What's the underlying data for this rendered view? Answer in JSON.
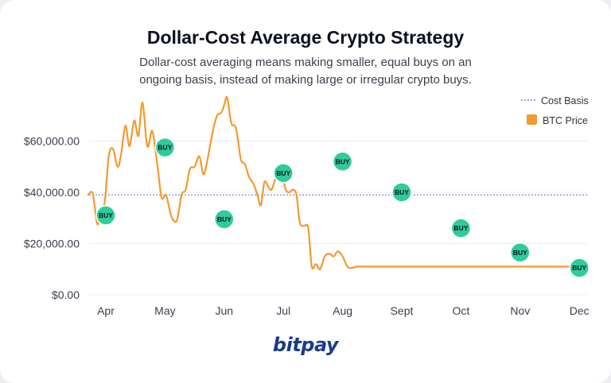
{
  "title": "Dollar-Cost Average Crypto Strategy",
  "subtitle": "Dollar-cost averaging means making smaller, equal buys on an ongoing basis, instead of making large or irregular crypto buys.",
  "logo_text": "bitpay",
  "colors": {
    "price_line": "#f29a2e",
    "cost_basis": "#5b6bd6",
    "buy_marker": "#2ecc9a",
    "grid": "#ececf2"
  },
  "chart_data": {
    "type": "line",
    "x_ticks": [
      "Apr",
      "May",
      "Jun",
      "Jul",
      "Aug",
      "Sept",
      "Oct",
      "Nov",
      "Dec"
    ],
    "y_ticks": [
      "$0.00",
      "$20,000.00",
      "$40,000.00",
      "$60,000.00"
    ],
    "ylim": [
      0,
      80000
    ],
    "grid": true,
    "legend_position": "top-right",
    "legend": [
      "Cost Basis",
      "BTC Price"
    ],
    "series": [
      {
        "name": "BTC Price",
        "type": "line",
        "x": [
          -0.3,
          -0.22,
          -0.15,
          -0.1,
          -0.02,
          0.05,
          0.12,
          0.2,
          0.26,
          0.33,
          0.4,
          0.48,
          0.55,
          0.62,
          0.7,
          0.78,
          0.84,
          0.9,
          0.94,
          0.98,
          1.02,
          1.07,
          1.12,
          1.2,
          1.28,
          1.35,
          1.42,
          1.5,
          1.58,
          1.65,
          1.72,
          1.8,
          1.88,
          1.95,
          2.0,
          2.05,
          2.12,
          2.2,
          2.28,
          2.35,
          2.42,
          2.5,
          2.56,
          2.62,
          2.68,
          2.75,
          2.8,
          2.86,
          2.92,
          2.98,
          3.04,
          3.1,
          3.16,
          3.22,
          3.28,
          3.36,
          3.42,
          3.48,
          3.55,
          3.62,
          3.7,
          3.78,
          3.85,
          3.92,
          4.0,
          4.08,
          4.16,
          4.24,
          4.32,
          4.4,
          4.48,
          4.55,
          4.62,
          4.7,
          4.78,
          4.86,
          4.94,
          5.0,
          5.06,
          5.12,
          5.18,
          5.25,
          5.32,
          5.38,
          5.45,
          5.52,
          5.58,
          5.65,
          5.72,
          5.78,
          5.85,
          5.92,
          6.0,
          6.08,
          6.14,
          6.2,
          6.28,
          6.35,
          6.42,
          6.5,
          6.58,
          6.66,
          6.74,
          6.82,
          6.9,
          6.98,
          7.06,
          7.14,
          7.22,
          7.3,
          7.38,
          7.46,
          7.54,
          7.62,
          7.7,
          7.78,
          7.86,
          7.94,
          8.0,
          8.06
        ],
        "values": [
          39000,
          39500,
          28000,
          30000,
          36000,
          54000,
          57000,
          50000,
          55000,
          66000,
          58000,
          68000,
          62000,
          75000,
          58000,
          64000,
          56000,
          45000,
          38000,
          38000,
          39000,
          34000,
          30000,
          29000,
          39000,
          41000,
          49000,
          50000,
          54000,
          47000,
          53000,
          63000,
          70000,
          71000,
          74000,
          77000,
          67000,
          65000,
          53000,
          51000,
          46000,
          43000,
          39000,
          35000,
          44000,
          42000,
          41000,
          45000,
          49000,
          47000,
          41000,
          40000,
          41000,
          39000,
          28000,
          27000,
          26000,
          11000,
          12000,
          10000,
          15000,
          16000,
          15000,
          17000,
          15000,
          11000,
          10500,
          11000,
          11000,
          11000,
          11000,
          11000,
          11000,
          11000,
          11000,
          11000,
          11000,
          11000,
          11000,
          11000,
          11000,
          11000,
          11000,
          11000,
          11000,
          11000,
          11000,
          11000,
          11000,
          11000,
          11000,
          11000,
          11000,
          11000,
          11000,
          11000,
          11000,
          11000,
          11000,
          11000,
          11000,
          11000,
          11000,
          11000,
          11000,
          11000,
          11000,
          11000,
          11000,
          11000,
          11000,
          11000,
          11000,
          11000,
          11000,
          11000,
          11000,
          11000,
          11000,
          11000
        ]
      },
      {
        "name": "Cost Basis",
        "type": "line",
        "value": 39000
      }
    ],
    "buys": [
      {
        "x": 0,
        "value": 31000,
        "label": "BUY"
      },
      {
        "x": 1,
        "value": 57500,
        "label": "BUY"
      },
      {
        "x": 2,
        "value": 29500,
        "label": "BUY"
      },
      {
        "x": 3,
        "value": 47500,
        "label": "BUY"
      },
      {
        "x": 4,
        "value": 52000,
        "label": "BUY"
      },
      {
        "x": 5,
        "value": 40000,
        "label": "BUY"
      },
      {
        "x": 6,
        "value": 26000,
        "label": "BUY"
      },
      {
        "x": 7,
        "value": 16500,
        "label": "BUY"
      },
      {
        "x": 8,
        "value": 10500,
        "label": "BUY"
      }
    ]
  }
}
